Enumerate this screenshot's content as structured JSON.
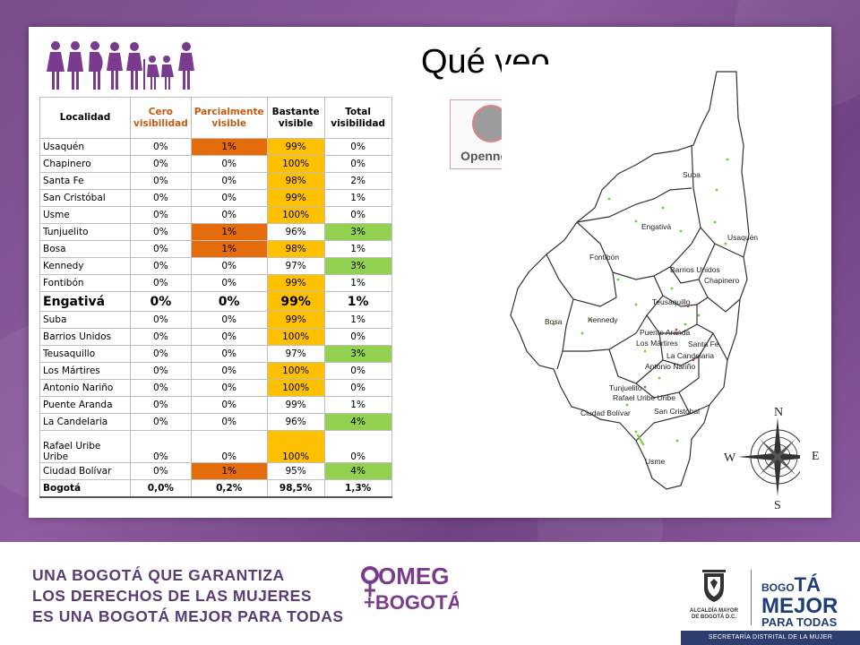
{
  "slide": {
    "title": "Qué veo"
  },
  "table": {
    "headers": [
      "Localidad",
      "Cero visibilidad",
      "Parcialmente visible",
      "Bastante visible",
      "Total visibilidad"
    ],
    "rows": [
      {
        "loc": "Usaquén",
        "v": [
          "0%",
          "1%",
          "99%",
          "0%"
        ]
      },
      {
        "loc": "Chapinero",
        "v": [
          "0%",
          "0%",
          "100%",
          "0%"
        ]
      },
      {
        "loc": "Santa Fe",
        "v": [
          "0%",
          "0%",
          "98%",
          "2%"
        ]
      },
      {
        "loc": "San Cristóbal",
        "v": [
          "0%",
          "0%",
          "99%",
          "1%"
        ]
      },
      {
        "loc": "Usme",
        "v": [
          "0%",
          "0%",
          "100%",
          "0%"
        ]
      },
      {
        "loc": "Tunjuelito",
        "v": [
          "0%",
          "1%",
          "96%",
          "3%"
        ]
      },
      {
        "loc": "Bosa",
        "v": [
          "0%",
          "1%",
          "98%",
          "1%"
        ]
      },
      {
        "loc": "Kennedy",
        "v": [
          "0%",
          "0%",
          "97%",
          "3%"
        ]
      },
      {
        "loc": "Fontibón",
        "v": [
          "0%",
          "0%",
          "99%",
          "1%"
        ]
      },
      {
        "loc": "Engativá",
        "v": [
          "0%",
          "0%",
          "99%",
          "1%"
        ]
      },
      {
        "loc": "Suba",
        "v": [
          "0%",
          "0%",
          "99%",
          "1%"
        ]
      },
      {
        "loc": "Barrios Unidos",
        "v": [
          "0%",
          "0%",
          "100%",
          "0%"
        ]
      },
      {
        "loc": "Teusaquillo",
        "v": [
          "0%",
          "0%",
          "97%",
          "3%"
        ]
      },
      {
        "loc": "Los Mártires",
        "v": [
          "0%",
          "0%",
          "100%",
          "0%"
        ]
      },
      {
        "loc": "Antonio Nariño",
        "v": [
          "0%",
          "0%",
          "100%",
          "0%"
        ]
      },
      {
        "loc": "Puente Aranda",
        "v": [
          "0%",
          "0%",
          "99%",
          "1%"
        ]
      },
      {
        "loc": "La Candelaria",
        "v": [
          "0%",
          "0%",
          "96%",
          "4%"
        ]
      },
      {
        "loc": "Rafael Uribe Uribe",
        "v": [
          "0%",
          "0%",
          "100%",
          "0%"
        ]
      },
      {
        "loc": "Ciudad Bolívar",
        "v": [
          "0%",
          "1%",
          "95%",
          "4%"
        ]
      }
    ],
    "total": {
      "loc": "Bogotá",
      "v": [
        "0,0%",
        "0,2%",
        "98,5%",
        "1,3%"
      ]
    }
  },
  "openness": {
    "label": "Openness",
    "circle_color": "#9c9c9c"
  },
  "map": {
    "localities": [
      "Suba",
      "Usaquén",
      "Engativá",
      "Fontibón",
      "Barrios Unidos",
      "Chapinero",
      "Teusaquillo",
      "Bosa",
      "Kennedy",
      "Puente Aranda",
      "Los Mártires",
      "Santa Fe",
      "La Candelaria",
      "Antonio Nariño",
      "Tunjuelito",
      "Rafael Uribe Uribe",
      "Ciudad Bolívar",
      "San Cristóbal",
      "Usme"
    ],
    "compass": {
      "n": "N",
      "s": "S",
      "e": "E",
      "w": "W"
    }
  },
  "footer": {
    "line1": "UNA BOGOTÁ QUE GARANTIZA",
    "line2": "LOS DERECHOS DE LAS MUJERES",
    "line3": "ES UNA BOGOTÁ MEJOR PARA TODAS",
    "omeg_top": "OMEG",
    "omeg_bottom": "+BOGOTÁ",
    "alcaldia_line1": "ALCALDÍA MAYOR",
    "alcaldia_line2": "DE BOGOTÁ D.C.",
    "bogota_small": "BOGO",
    "bogota_big": "TÁ",
    "mejor": "MEJOR",
    "para_todas": "PARA TODAS",
    "secretaria": "SECRETARÍA DISTRITAL DE LA MUJER"
  },
  "colors": {
    "purple_bg": "#7a4d8c",
    "orange": "#e46c0a",
    "yellow": "#ffc000",
    "green": "#92d050",
    "footer_text": "#5b3c76",
    "navy": "#1e3d7a"
  }
}
